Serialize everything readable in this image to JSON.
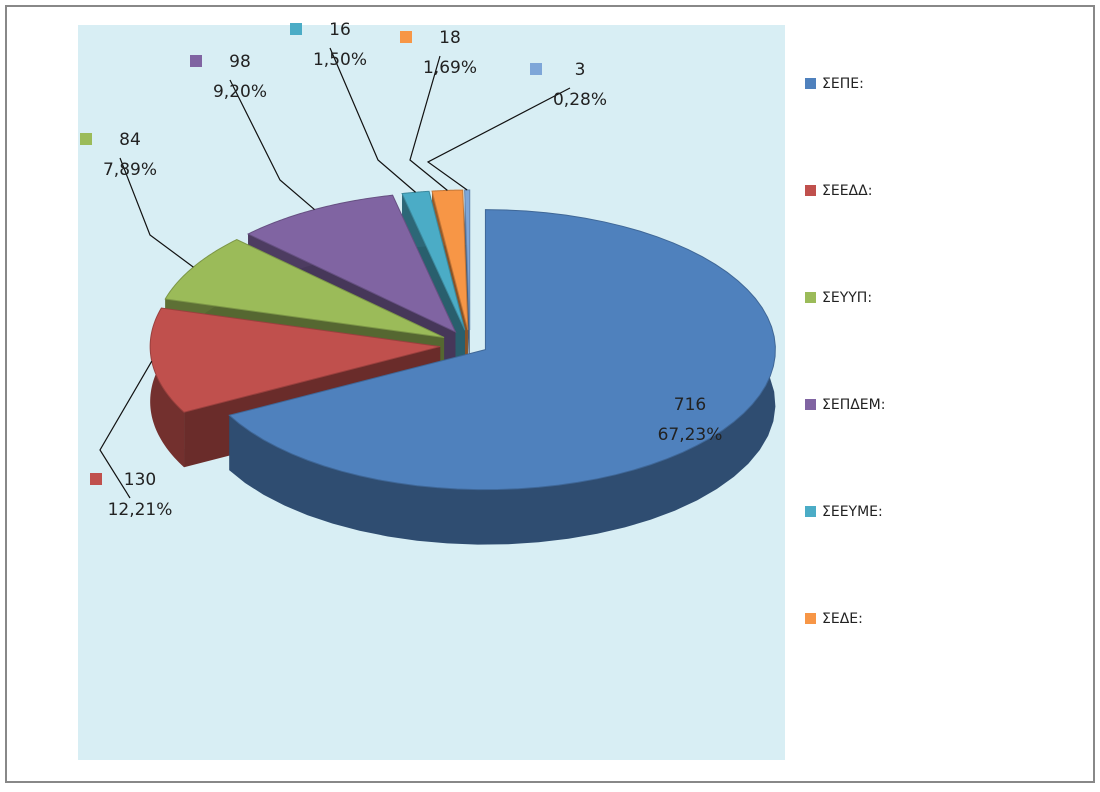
{
  "chart_data": {
    "type": "pie3d",
    "categories": [
      "ΣΕΠΕ:",
      "ΣΕΕΔΔ:",
      "ΣΕΥΥΠ:",
      "ΣΕΠΔΕΜ:",
      "ΣΕΕΥΜΕ:",
      "ΣΕΔΕ:",
      null
    ],
    "values": [
      716,
      130,
      84,
      98,
      16,
      18,
      3
    ],
    "percent_labels": [
      "67,23%",
      "12,21%",
      "7,89%",
      "9,20%",
      "1,50%",
      "1,69%",
      "0,28%"
    ],
    "colors": [
      "#4f81bd",
      "#c0504d",
      "#9bbb59",
      "#8064a2",
      "#4bacc6",
      "#f79646",
      "#7ea6d8"
    ],
    "legend": "right"
  }
}
